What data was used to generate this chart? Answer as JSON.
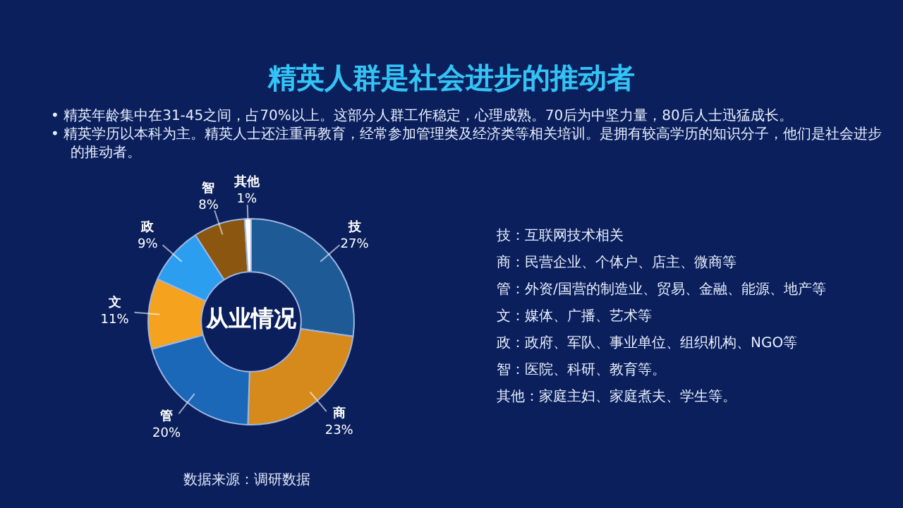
{
  "chart_data": {
    "type": "donut",
    "title": "精英人群是社会进步的推动者",
    "categories": [
      "技",
      "商",
      "管",
      "文",
      "政",
      "智",
      "其他"
    ],
    "values": [
      27,
      23,
      20,
      11,
      9,
      8,
      1
    ],
    "value_labels": [
      "27%",
      "23%",
      "20%",
      "11%",
      "9%",
      "8%",
      "1%"
    ],
    "colors": [
      "#1d5a96",
      "#d68a1c",
      "#1b67b8",
      "#f5a21e",
      "#2c9ef0",
      "#8a5610",
      "#ffffff"
    ],
    "legend": false,
    "annotations": [
      "•  精英年龄集中在31-45之间，占70%以上。这部分人群工作稳定，心理成熟。70后为中坚力量，80后人士迅猛成长。",
      "•  精英学历以本科为主。精英人士还注重再教育，经常参加管理类及经济类等相关培训。是拥有较高学历的知识分子，他们是社会进步的推动者。",
      "从业情况",
      "技：互联网技术相关",
      "商：民营企业、个体户、店主、微商等",
      "管：外资/国营的制造业、贸易、金融、能源、地产等",
      "文：媒体、广播、艺术等",
      "政：政府、军队、事业单位、组织机构、NGO等",
      "智：医院、科研、教育等。",
      "其他：家庭主妇、家庭煮夫、学生等。",
      "数据来源：调研数据"
    ]
  }
}
